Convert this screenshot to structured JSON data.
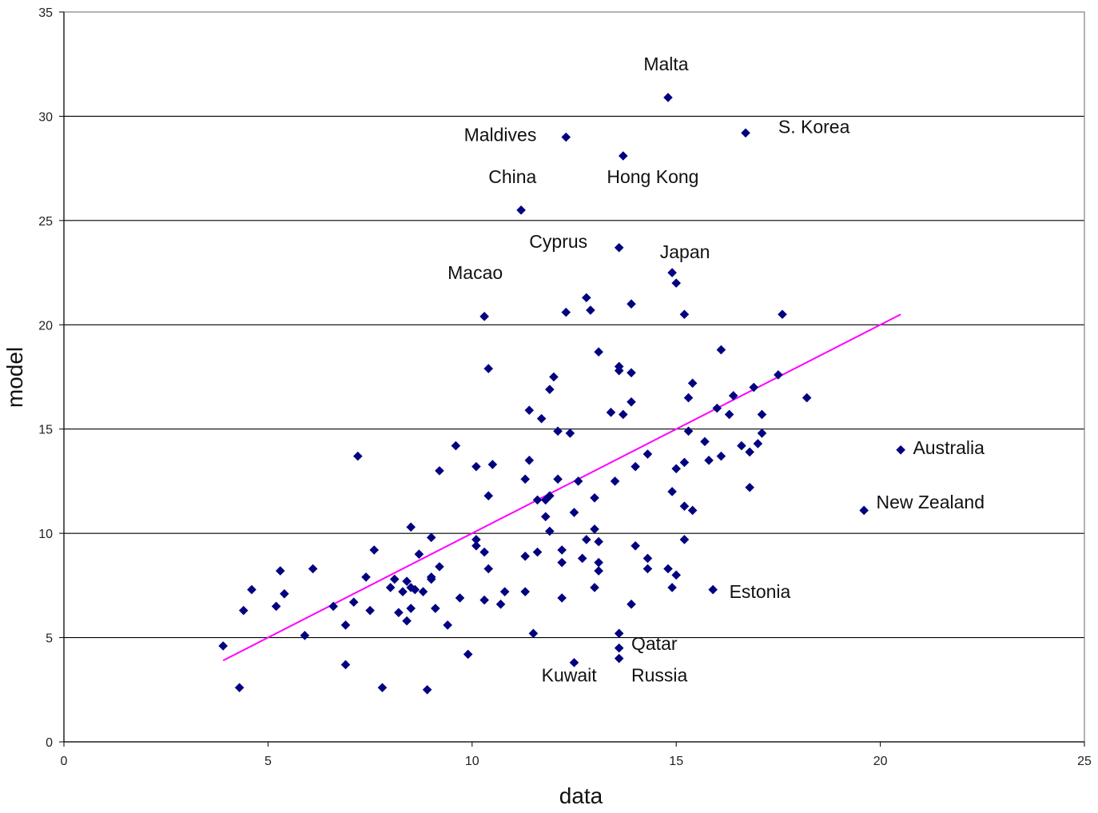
{
  "chart_data": {
    "type": "scatter",
    "title": "",
    "xlabel": "data",
    "ylabel": "model",
    "xlim": [
      0,
      25
    ],
    "ylim": [
      0,
      35
    ],
    "xticks": [
      0,
      5,
      10,
      15,
      20,
      25
    ],
    "yticks": [
      0,
      5,
      10,
      15,
      20,
      25,
      30,
      35
    ],
    "grid": "horizontal-major",
    "legend": "none",
    "colors": {
      "points": "#000080",
      "trendline": "#ff00ff",
      "grid": "#000000"
    },
    "trendline": {
      "x": [
        3.9,
        20.5
      ],
      "y": [
        3.9,
        20.5
      ]
    },
    "series": [
      {
        "points": [
          [
            14.8,
            30.9
          ],
          [
            16.7,
            29.2
          ],
          [
            12.3,
            29.0
          ],
          [
            13.7,
            28.1
          ],
          [
            11.2,
            25.5
          ],
          [
            13.6,
            23.7
          ],
          [
            14.9,
            22.5
          ],
          [
            15.0,
            22.0
          ],
          [
            12.8,
            21.3
          ],
          [
            13.9,
            21.0
          ],
          [
            12.3,
            20.6
          ],
          [
            12.9,
            20.7
          ],
          [
            15.2,
            20.5
          ],
          [
            17.6,
            20.5
          ],
          [
            10.3,
            20.4
          ],
          [
            13.1,
            18.7
          ],
          [
            16.1,
            18.8
          ],
          [
            10.4,
            17.9
          ],
          [
            13.6,
            18.0
          ],
          [
            13.6,
            17.8
          ],
          [
            13.9,
            17.7
          ],
          [
            12.0,
            17.5
          ],
          [
            17.5,
            17.6
          ],
          [
            15.4,
            17.2
          ],
          [
            11.9,
            16.9
          ],
          [
            16.9,
            17.0
          ],
          [
            18.2,
            16.5
          ],
          [
            15.3,
            16.5
          ],
          [
            16.4,
            16.6
          ],
          [
            13.9,
            16.3
          ],
          [
            16.0,
            16.0
          ],
          [
            11.4,
            15.9
          ],
          [
            11.7,
            15.5
          ],
          [
            13.4,
            15.8
          ],
          [
            13.7,
            15.7
          ],
          [
            16.3,
            15.7
          ],
          [
            17.1,
            15.7
          ],
          [
            12.1,
            14.9
          ],
          [
            12.4,
            14.8
          ],
          [
            15.3,
            14.9
          ],
          [
            17.1,
            14.8
          ],
          [
            9.6,
            14.2
          ],
          [
            15.7,
            14.4
          ],
          [
            16.6,
            14.2
          ],
          [
            17.0,
            14.3
          ],
          [
            14.3,
            13.8
          ],
          [
            16.8,
            13.9
          ],
          [
            7.2,
            13.7
          ],
          [
            11.4,
            13.5
          ],
          [
            15.2,
            13.4
          ],
          [
            15.8,
            13.5
          ],
          [
            16.1,
            13.7
          ],
          [
            10.1,
            13.2
          ],
          [
            10.5,
            13.3
          ],
          [
            14.0,
            13.2
          ],
          [
            15.0,
            13.1
          ],
          [
            9.2,
            13.0
          ],
          [
            11.3,
            12.6
          ],
          [
            12.1,
            12.6
          ],
          [
            12.6,
            12.5
          ],
          [
            13.5,
            12.5
          ],
          [
            16.8,
            12.2
          ],
          [
            14.9,
            12.0
          ],
          [
            10.4,
            11.8
          ],
          [
            11.9,
            11.8
          ],
          [
            11.6,
            11.6
          ],
          [
            11.8,
            11.6
          ],
          [
            13.0,
            11.7
          ],
          [
            15.2,
            11.3
          ],
          [
            15.4,
            11.1
          ],
          [
            12.5,
            11.0
          ],
          [
            11.8,
            10.8
          ],
          [
            8.5,
            10.3
          ],
          [
            11.9,
            10.1
          ],
          [
            13.0,
            10.2
          ],
          [
            9.0,
            9.8
          ],
          [
            10.1,
            9.7
          ],
          [
            12.8,
            9.7
          ],
          [
            13.1,
            9.6
          ],
          [
            15.2,
            9.7
          ],
          [
            10.1,
            9.4
          ],
          [
            7.6,
            9.2
          ],
          [
            10.3,
            9.1
          ],
          [
            11.6,
            9.1
          ],
          [
            12.2,
            9.2
          ],
          [
            14.0,
            9.4
          ],
          [
            8.7,
            9.0
          ],
          [
            11.3,
            8.9
          ],
          [
            12.7,
            8.8
          ],
          [
            14.3,
            8.8
          ],
          [
            12.2,
            8.6
          ],
          [
            13.1,
            8.6
          ],
          [
            6.1,
            8.3
          ],
          [
            9.2,
            8.4
          ],
          [
            10.4,
            8.3
          ],
          [
            14.3,
            8.3
          ],
          [
            14.8,
            8.3
          ],
          [
            5.3,
            8.2
          ],
          [
            13.1,
            8.2
          ],
          [
            15.0,
            8.0
          ],
          [
            7.4,
            7.9
          ],
          [
            9.0,
            7.8
          ],
          [
            9.0,
            7.9
          ],
          [
            8.1,
            7.8
          ],
          [
            8.4,
            7.7
          ],
          [
            8.0,
            7.4
          ],
          [
            8.5,
            7.4
          ],
          [
            8.6,
            7.3
          ],
          [
            13.0,
            7.4
          ],
          [
            14.9,
            7.4
          ],
          [
            4.6,
            7.3
          ],
          [
            8.3,
            7.2
          ],
          [
            8.8,
            7.2
          ],
          [
            10.8,
            7.2
          ],
          [
            11.3,
            7.2
          ],
          [
            15.9,
            7.3
          ],
          [
            5.4,
            7.1
          ],
          [
            9.7,
            6.9
          ],
          [
            10.3,
            6.8
          ],
          [
            12.2,
            6.9
          ],
          [
            7.1,
            6.7
          ],
          [
            10.7,
            6.6
          ],
          [
            13.9,
            6.6
          ],
          [
            5.2,
            6.5
          ],
          [
            6.6,
            6.5
          ],
          [
            8.5,
            6.4
          ],
          [
            9.1,
            6.4
          ],
          [
            4.4,
            6.3
          ],
          [
            7.5,
            6.3
          ],
          [
            8.2,
            6.2
          ],
          [
            8.4,
            5.8
          ],
          [
            6.9,
            5.6
          ],
          [
            9.4,
            5.6
          ],
          [
            13.6,
            5.2
          ],
          [
            11.5,
            5.2
          ],
          [
            5.9,
            5.1
          ],
          [
            3.9,
            4.6
          ],
          [
            13.6,
            4.5
          ],
          [
            9.9,
            4.2
          ],
          [
            13.6,
            4.0
          ],
          [
            12.5,
            3.8
          ],
          [
            6.9,
            3.7
          ],
          [
            4.3,
            2.6
          ],
          [
            7.8,
            2.6
          ],
          [
            8.9,
            2.5
          ],
          [
            19.6,
            11.1
          ],
          [
            20.5,
            14.0
          ]
        ]
      }
    ],
    "annotations": [
      {
        "text": "Malta",
        "x": 14.2,
        "y": 32.2
      },
      {
        "text": "S. Korea",
        "x": 17.5,
        "y": 29.2
      },
      {
        "text": "Maldives",
        "x": 9.8,
        "y": 28.8
      },
      {
        "text": "China",
        "x": 10.4,
        "y": 26.8
      },
      {
        "text": "Hong Kong",
        "x": 13.3,
        "y": 26.8
      },
      {
        "text": "Cyprus",
        "x": 11.4,
        "y": 23.7
      },
      {
        "text": "Japan",
        "x": 14.6,
        "y": 23.2
      },
      {
        "text": "Macao",
        "x": 9.4,
        "y": 22.2
      },
      {
        "text": "Australia",
        "x": 20.8,
        "y": 13.8
      },
      {
        "text": "New Zealand",
        "x": 19.9,
        "y": 11.2
      },
      {
        "text": "Estonia",
        "x": 16.3,
        "y": 6.9
      },
      {
        "text": "Qatar",
        "x": 13.9,
        "y": 4.4
      },
      {
        "text": "Kuwait",
        "x": 11.7,
        "y": 2.9
      },
      {
        "text": "Russia",
        "x": 13.9,
        "y": 2.9
      }
    ]
  }
}
